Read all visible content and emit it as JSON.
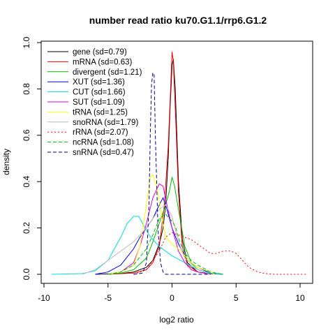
{
  "chart_data": {
    "type": "line",
    "title": "number read ratio ku70.G1.1/rrp6.G1.2",
    "xlabel": "log2 ratio",
    "ylabel": "density",
    "xlim": [
      -10,
      10.5
    ],
    "ylim": [
      0,
      1.0
    ],
    "x_ticks": [
      -10,
      -5,
      0,
      5,
      10
    ],
    "y_ticks": [
      0.0,
      0.2,
      0.4,
      0.6,
      0.8,
      1.0
    ],
    "grid": false,
    "legend_position": "top-left",
    "series": [
      {
        "name": "gene (sd=0.79)",
        "color": "#000000",
        "dash": "solid",
        "points": [
          [
            -6,
            0
          ],
          [
            -4,
            0.003
          ],
          [
            -3,
            0.01
          ],
          [
            -2,
            0.03
          ],
          [
            -1.5,
            0.06
          ],
          [
            -1,
            0.13
          ],
          [
            -0.7,
            0.2
          ],
          [
            -0.5,
            0.3
          ],
          [
            -0.3,
            0.5
          ],
          [
            -0.15,
            0.72
          ],
          [
            0,
            0.9
          ],
          [
            0.1,
            0.93
          ],
          [
            0.25,
            0.8
          ],
          [
            0.5,
            0.4
          ],
          [
            0.8,
            0.15
          ],
          [
            1.2,
            0.05
          ],
          [
            2,
            0.01
          ],
          [
            3,
            0.003
          ],
          [
            4,
            0
          ]
        ]
      },
      {
        "name": "mRNA (sd=0.63)",
        "color": "#ff0000",
        "dash": "solid",
        "points": [
          [
            -5,
            0
          ],
          [
            -3,
            0.005
          ],
          [
            -2,
            0.02
          ],
          [
            -1.5,
            0.05
          ],
          [
            -1,
            0.12
          ],
          [
            -0.6,
            0.3
          ],
          [
            -0.3,
            0.55
          ],
          [
            -0.1,
            0.82
          ],
          [
            0,
            0.96
          ],
          [
            0.1,
            0.92
          ],
          [
            0.3,
            0.65
          ],
          [
            0.5,
            0.35
          ],
          [
            0.8,
            0.12
          ],
          [
            1.2,
            0.04
          ],
          [
            2,
            0.01
          ],
          [
            3,
            0
          ]
        ]
      },
      {
        "name": "divergent (sd=1.21)",
        "color": "#00bb00",
        "dash": "solid",
        "points": [
          [
            -5,
            0
          ],
          [
            -4,
            0.005
          ],
          [
            -3,
            0.02
          ],
          [
            -2,
            0.07
          ],
          [
            -1.5,
            0.14
          ],
          [
            -1,
            0.22
          ],
          [
            -0.5,
            0.3
          ],
          [
            -0.2,
            0.36
          ],
          [
            0,
            0.42
          ],
          [
            0.2,
            0.38
          ],
          [
            0.5,
            0.28
          ],
          [
            1,
            0.12
          ],
          [
            1.5,
            0.05
          ],
          [
            2,
            0.02
          ],
          [
            3,
            0.005
          ],
          [
            4,
            0
          ]
        ]
      },
      {
        "name": "XUT (sd=1.36)",
        "color": "#0000ff",
        "dash": "solid",
        "points": [
          [
            -6,
            0
          ],
          [
            -5,
            0.01
          ],
          [
            -4,
            0.04
          ],
          [
            -3,
            0.11
          ],
          [
            -2.5,
            0.16
          ],
          [
            -2,
            0.2
          ],
          [
            -1.5,
            0.24
          ],
          [
            -1,
            0.3
          ],
          [
            -0.7,
            0.33
          ],
          [
            -0.4,
            0.28
          ],
          [
            0,
            0.2
          ],
          [
            0.5,
            0.13
          ],
          [
            1,
            0.08
          ],
          [
            1.5,
            0.05
          ],
          [
            2,
            0.03
          ],
          [
            3,
            0.005
          ],
          [
            4,
            0
          ]
        ]
      },
      {
        "name": "CUT (sd=1.66)",
        "color": "#00dddd",
        "dash": "solid",
        "points": [
          [
            -9.4,
            0
          ],
          [
            -7,
            0.003
          ],
          [
            -6,
            0.015
          ],
          [
            -5,
            0.06
          ],
          [
            -4,
            0.16
          ],
          [
            -3.5,
            0.22
          ],
          [
            -3,
            0.25
          ],
          [
            -2.6,
            0.25
          ],
          [
            -2.2,
            0.21
          ],
          [
            -1.8,
            0.17
          ],
          [
            -1.5,
            0.15
          ],
          [
            -1,
            0.12
          ],
          [
            -0.5,
            0.1
          ],
          [
            0,
            0.08
          ],
          [
            1,
            0.05
          ],
          [
            2,
            0.02
          ],
          [
            3,
            0.005
          ],
          [
            4,
            0
          ]
        ]
      },
      {
        "name": "SUT (sd=1.09)",
        "color": "#dd00dd",
        "dash": "solid",
        "points": [
          [
            -5,
            0
          ],
          [
            -4,
            0.01
          ],
          [
            -3,
            0.05
          ],
          [
            -2.5,
            0.12
          ],
          [
            -2,
            0.22
          ],
          [
            -1.5,
            0.33
          ],
          [
            -1,
            0.39
          ],
          [
            -0.7,
            0.38
          ],
          [
            -0.4,
            0.3
          ],
          [
            0,
            0.2
          ],
          [
            0.5,
            0.1
          ],
          [
            1,
            0.05
          ],
          [
            1.5,
            0.02
          ],
          [
            2,
            0.01
          ],
          [
            3,
            0
          ]
        ]
      },
      {
        "name": "tRNA (sd=1.25)",
        "color": "#ffff00",
        "dash": "solid",
        "points": [
          [
            -5,
            0
          ],
          [
            -4,
            0.01
          ],
          [
            -3,
            0.04
          ],
          [
            -2.5,
            0.12
          ],
          [
            -2,
            0.3
          ],
          [
            -1.7,
            0.42
          ],
          [
            -1.5,
            0.43
          ],
          [
            -1.2,
            0.38
          ],
          [
            -0.8,
            0.25
          ],
          [
            -0.5,
            0.16
          ],
          [
            0,
            0.13
          ],
          [
            0.5,
            0.11
          ],
          [
            1,
            0.08
          ],
          [
            1.5,
            0.05
          ],
          [
            2,
            0.03
          ],
          [
            3,
            0.01
          ],
          [
            3.3,
            0
          ]
        ]
      },
      {
        "name": "snoRNA (sd=1.79)",
        "color": "#bbbbbb",
        "dash": "solid",
        "points": [
          [
            -7,
            0
          ],
          [
            -6,
            0.02
          ],
          [
            -5,
            0.06
          ],
          [
            -4,
            0.1
          ],
          [
            -3,
            0.14
          ],
          [
            -2,
            0.2
          ],
          [
            -1.5,
            0.24
          ],
          [
            -1,
            0.28
          ],
          [
            -0.5,
            0.3
          ],
          [
            0,
            0.25
          ],
          [
            0.5,
            0.14
          ],
          [
            1,
            0.07
          ],
          [
            2,
            0.02
          ],
          [
            3,
            0
          ]
        ]
      },
      {
        "name": "rRNA (sd=2.07)",
        "color": "#ff0000",
        "dash": "dotted",
        "points": [
          [
            -3,
            0
          ],
          [
            -2,
            0.02
          ],
          [
            -1,
            0.1
          ],
          [
            -0.5,
            0.16
          ],
          [
            0,
            0.18
          ],
          [
            0.5,
            0.17
          ],
          [
            1,
            0.16
          ],
          [
            1.5,
            0.15
          ],
          [
            2,
            0.13
          ],
          [
            2.5,
            0.11
          ],
          [
            3,
            0.09
          ],
          [
            3.5,
            0.09
          ],
          [
            4,
            0.1
          ],
          [
            4.6,
            0.1
          ],
          [
            5,
            0.09
          ],
          [
            5.5,
            0.06
          ],
          [
            6,
            0.03
          ],
          [
            6.5,
            0.015
          ],
          [
            7,
            0.005
          ],
          [
            8,
            0
          ],
          [
            10.5,
            0
          ]
        ]
      },
      {
        "name": "ncRNA (sd=1.08)",
        "color": "#00bb00",
        "dash": "dashed",
        "points": [
          [
            -5,
            0
          ],
          [
            -4,
            0.01
          ],
          [
            -3,
            0.04
          ],
          [
            -2,
            0.11
          ],
          [
            -1.5,
            0.17
          ],
          [
            -1,
            0.24
          ],
          [
            -0.5,
            0.26
          ],
          [
            -0.2,
            0.24
          ],
          [
            0,
            0.23
          ],
          [
            0.3,
            0.2
          ],
          [
            0.6,
            0.14
          ],
          [
            1,
            0.09
          ],
          [
            1.5,
            0.06
          ],
          [
            2,
            0.04
          ],
          [
            3,
            0.01
          ],
          [
            4,
            0
          ]
        ]
      },
      {
        "name": "snRNA (sd=0.47)",
        "color": "#00008b",
        "dash": "dashed",
        "points": [
          [
            -3,
            0
          ],
          [
            -2.3,
            0.005
          ],
          [
            -2,
            0.05
          ],
          [
            -1.8,
            0.3
          ],
          [
            -1.7,
            0.6
          ],
          [
            -1.6,
            0.82
          ],
          [
            -1.5,
            0.87
          ],
          [
            -1.4,
            0.86
          ],
          [
            -1.3,
            0.6
          ],
          [
            -1.1,
            0.2
          ],
          [
            -0.9,
            0.05
          ],
          [
            -0.7,
            0.01
          ],
          [
            -0.5,
            0
          ],
          [
            3,
            0
          ]
        ]
      }
    ]
  }
}
